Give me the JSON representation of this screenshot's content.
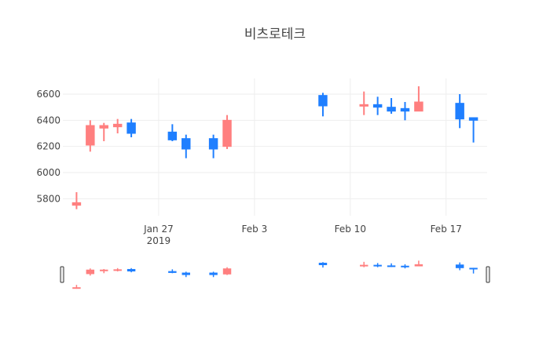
{
  "chart_data": {
    "type": "candlestick",
    "title": "비츠로테크",
    "y_ticks": [
      5800,
      6000,
      6200,
      6400,
      6600
    ],
    "y_range": [
      5670,
      6720
    ],
    "x_range": [
      "2019-01-20",
      "2019-02-20"
    ],
    "x_ticks": [
      {
        "date": "2019-01-27",
        "label": "Jan 27",
        "sublabel": "2019"
      },
      {
        "date": "2019-02-03",
        "label": "Feb 3",
        "sublabel": ""
      },
      {
        "date": "2019-02-10",
        "label": "Feb 10",
        "sublabel": ""
      },
      {
        "date": "2019-02-17",
        "label": "Feb 17",
        "sublabel": ""
      }
    ],
    "colors": {
      "increasing": "#ff7f7f",
      "decreasing": "#1f7fff"
    },
    "candles": [
      {
        "date": "2019-01-21",
        "open": 5750,
        "high": 5850,
        "low": 5720,
        "close": 5770
      },
      {
        "date": "2019-01-22",
        "open": 6210,
        "high": 6400,
        "low": 6160,
        "close": 6360
      },
      {
        "date": "2019-01-23",
        "open": 6340,
        "high": 6380,
        "low": 6240,
        "close": 6360
      },
      {
        "date": "2019-01-24",
        "open": 6350,
        "high": 6410,
        "low": 6300,
        "close": 6370
      },
      {
        "date": "2019-01-25",
        "open": 6380,
        "high": 6410,
        "low": 6270,
        "close": 6300
      },
      {
        "date": "2019-01-28",
        "open": 6310,
        "high": 6370,
        "low": 6240,
        "close": 6250
      },
      {
        "date": "2019-01-29",
        "open": 6260,
        "high": 6290,
        "low": 6110,
        "close": 6180
      },
      {
        "date": "2019-01-31",
        "open": 6260,
        "high": 6290,
        "low": 6110,
        "close": 6180
      },
      {
        "date": "2019-02-01",
        "open": 6200,
        "high": 6440,
        "low": 6180,
        "close": 6400
      },
      {
        "date": "2019-02-08",
        "open": 6590,
        "high": 6610,
        "low": 6430,
        "close": 6510
      },
      {
        "date": "2019-02-11",
        "open": 6510,
        "high": 6620,
        "low": 6440,
        "close": 6520
      },
      {
        "date": "2019-02-12",
        "open": 6520,
        "high": 6580,
        "low": 6440,
        "close": 6500
      },
      {
        "date": "2019-02-13",
        "open": 6500,
        "high": 6570,
        "low": 6450,
        "close": 6470
      },
      {
        "date": "2019-02-14",
        "open": 6490,
        "high": 6540,
        "low": 6400,
        "close": 6470
      },
      {
        "date": "2019-02-15",
        "open": 6470,
        "high": 6660,
        "low": 6470,
        "close": 6540
      },
      {
        "date": "2019-02-18",
        "open": 6530,
        "high": 6600,
        "low": 6340,
        "close": 6410
      },
      {
        "date": "2019-02-19",
        "open": 6420,
        "high": 6420,
        "low": 6230,
        "close": 6400
      }
    ]
  }
}
